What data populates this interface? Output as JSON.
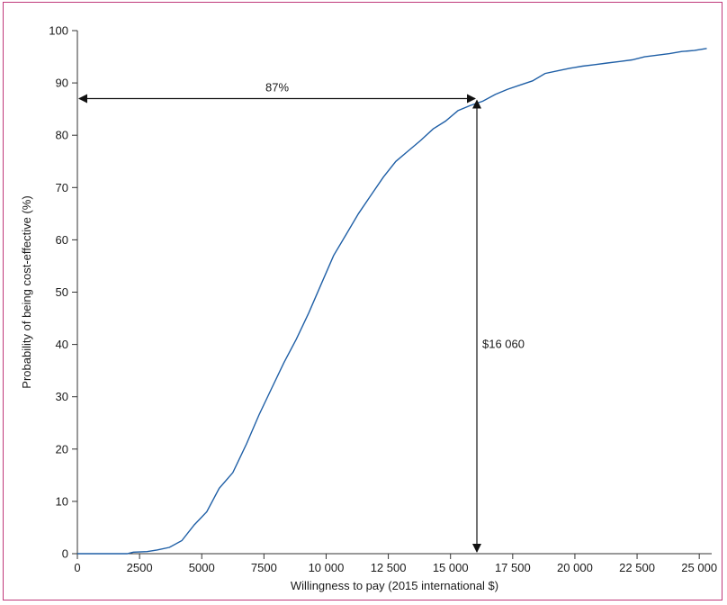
{
  "chart_data": {
    "type": "line",
    "title": "",
    "xlabel": "Willingness to pay (2015 international $)",
    "ylabel": "Probability of being cost-effective (%)",
    "xlim": [
      0,
      25500
    ],
    "ylim": [
      0,
      100
    ],
    "x_ticks": [
      0,
      2500,
      5000,
      7500,
      10000,
      12500,
      15000,
      17500,
      20000,
      22500,
      25000
    ],
    "x_tick_labels": [
      "0",
      "2500",
      "5000",
      "7500",
      "10 000",
      "12 500",
      "15 000",
      "17 500",
      "20 000",
      "22 500",
      "25 000"
    ],
    "y_ticks": [
      0,
      10,
      20,
      30,
      40,
      50,
      60,
      70,
      80,
      90,
      100
    ],
    "y_tick_labels": [
      "0",
      "10",
      "20",
      "30",
      "40",
      "50",
      "60",
      "70",
      "80",
      "90",
      "100"
    ],
    "grid": false,
    "line_color": "#1f5fa6",
    "series": [
      {
        "x": [
          0,
          500,
          1000,
          1500,
          2000,
          2250,
          2800,
          3200,
          3700,
          4200,
          4700,
          5200,
          5700,
          6250,
          6800,
          7300,
          7800,
          8300,
          8800,
          9300,
          9800,
          10300,
          10800,
          11300,
          11800,
          12300,
          12800,
          13300,
          13800,
          14300,
          14800,
          15300,
          15800,
          16300,
          16800,
          17300,
          17800,
          18300,
          18800,
          19300,
          19800,
          20300,
          20800,
          21300,
          21800,
          22300,
          22800,
          23300,
          23800,
          24300,
          24800,
          25300
        ],
        "y": [
          0,
          0,
          0,
          0,
          0,
          0.3,
          0.4,
          0.7,
          1.2,
          2.5,
          5.5,
          8,
          12.5,
          15.5,
          21,
          26.5,
          31.5,
          36.5,
          41,
          46,
          51.5,
          57,
          61,
          65,
          68.5,
          72,
          75,
          77,
          79,
          81.2,
          82.7,
          84.7,
          85.7,
          86.5,
          87.8,
          88.8,
          89.6,
          90.4,
          91.8,
          92.3,
          92.8,
          93.2,
          93.5,
          93.8,
          94.1,
          94.4,
          95,
          95.3,
          95.6,
          96,
          96.2,
          96.6
        ]
      }
    ],
    "annotations": {
      "horizontal_arrow": {
        "label": "87%",
        "y": 87,
        "x_from": 0,
        "x_to": 16060
      },
      "vertical_arrow": {
        "label": "$16 060",
        "x": 16060,
        "y_from": 0,
        "y_to": 87
      }
    }
  }
}
